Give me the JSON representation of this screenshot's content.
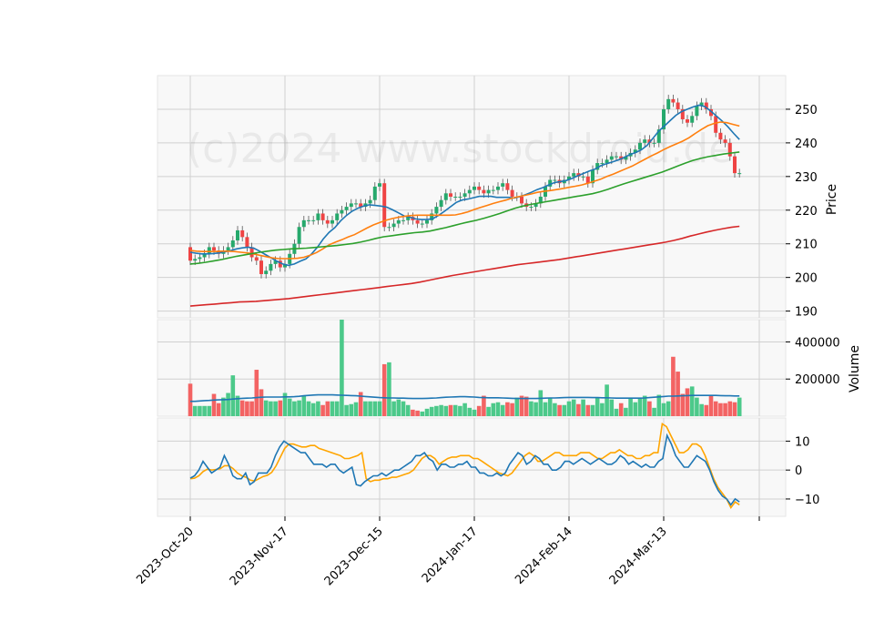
{
  "watermark": "(c)2024 www.stockdroid.de",
  "chart_data": [
    {
      "type": "candlestick",
      "panel": "price",
      "ylabel": "Price",
      "ylim": [
        188,
        260
      ],
      "yticks": [
        190,
        200,
        210,
        220,
        230,
        240,
        250
      ],
      "x_tick_labels": [
        "2023-Oct-20",
        "2023-Nov-17",
        "2023-Dec-15",
        "2024-Jan-17",
        "2024-Feb-14",
        "2024-Mar-13"
      ],
      "x_tick_index": [
        0,
        20,
        40,
        60,
        80,
        100
      ],
      "series": [
        {
          "name": "Close",
          "values": [
            205,
            205.5,
            206,
            207,
            209,
            208,
            207,
            208,
            209,
            211,
            214,
            212,
            209,
            206,
            205,
            201,
            202,
            204,
            205,
            203,
            204,
            207,
            210,
            215,
            217,
            217,
            217,
            219,
            217,
            216,
            217,
            219,
            220,
            221,
            222,
            222,
            221,
            222,
            223,
            227,
            228,
            215,
            215,
            216,
            217,
            217,
            218,
            217,
            216,
            216,
            217,
            219,
            221,
            223,
            225,
            224,
            224,
            224,
            225,
            226,
            227,
            226,
            225,
            226,
            226,
            227,
            228,
            226,
            224,
            224,
            222,
            221,
            221,
            222,
            224,
            227,
            229,
            229,
            228,
            229,
            230,
            231,
            230,
            230,
            228,
            232,
            234,
            234,
            235,
            236,
            236,
            235,
            236,
            237,
            238,
            240,
            241,
            240,
            240,
            244,
            250,
            253,
            252,
            250,
            247,
            246,
            248,
            251,
            252,
            250,
            248,
            243,
            241,
            240,
            236,
            231,
            231
          ]
        },
        {
          "name": "SMA10",
          "color": "#1f77b4",
          "values": [
            207.5,
            207.2,
            207,
            207,
            207.1,
            207.3,
            207.6,
            208,
            208.5,
            208.8,
            209,
            208.7,
            207.8,
            206.8,
            205.8,
            204.8,
            204,
            203.6,
            204,
            204.8,
            205.5,
            207,
            209,
            211.4,
            213.4,
            214.8,
            216.8,
            218.4,
            219.7,
            220.6,
            221.2,
            221.6,
            221.4,
            221.2,
            220.9,
            220.1,
            219.2,
            218.3,
            217.9,
            217.4,
            217.2,
            217.2,
            217.5,
            218.5,
            219.7,
            221,
            222.3,
            223,
            223.3,
            223.7,
            224.1,
            224.1,
            224.1,
            223.8,
            223.8,
            223.8,
            223.6,
            224,
            224.6,
            225.3,
            226.1,
            226.7,
            227.5,
            228.2,
            228.5,
            228.8,
            229.4,
            230.2,
            230.9,
            231.6,
            232.2,
            233.2,
            233.8,
            234.3,
            234.9,
            235.6,
            236.5,
            237.1,
            237.9,
            239.2,
            241.3,
            243.4,
            245,
            246.6,
            248.2,
            249.3,
            250,
            250.7,
            251.2,
            250.8,
            249.5,
            248,
            246.5,
            244.8,
            242.8,
            241
          ]
        },
        {
          "name": "SMA20",
          "color": "#ff7f0e",
          "values": [
            208,
            207.8,
            207.7,
            207.7,
            207.7,
            207.8,
            207.8,
            207.7,
            207.5,
            207.3,
            207,
            206.6,
            206.2,
            205.8,
            205.6,
            205.6,
            205.6,
            205.7,
            206,
            206.6,
            207.4,
            208.5,
            209.7,
            210.5,
            211.2,
            212,
            212.7,
            213.7,
            214.7,
            215.6,
            216.3,
            217,
            217.5,
            217.9,
            218.2,
            218.4,
            218.5,
            218.5,
            218.5,
            218.5,
            218.5,
            218.5,
            218.6,
            219,
            219.5,
            220.2,
            220.8,
            221.4,
            222,
            222.5,
            223,
            223.6,
            224,
            224.4,
            224.8,
            225.3,
            225.6,
            225.8,
            226.1,
            226.4,
            226.8,
            227.1,
            227.5,
            228,
            228.6,
            229.2,
            230,
            230.7,
            231.5,
            232.3,
            233.1,
            234.1,
            235.1,
            236.1,
            237,
            238,
            238.9,
            239.7,
            240.5,
            241.5,
            242.8,
            244,
            245.1,
            245.8,
            246.2,
            246,
            245.5,
            245
          ]
        },
        {
          "name": "SMA50",
          "color": "#2ca02c",
          "values": [
            204,
            204.2,
            204.5,
            204.9,
            205.3,
            205.8,
            206.3,
            206.7,
            207.1,
            207.5,
            207.8,
            208.1,
            208.3,
            208.5,
            208.6,
            208.7,
            208.9,
            209.1,
            209.3,
            209.5,
            209.8,
            210.1,
            210.5,
            211,
            211.6,
            212.1,
            212.4,
            212.7,
            213,
            213.3,
            213.5,
            213.8,
            214.3,
            214.8,
            215.4,
            216,
            216.5,
            217,
            217.6,
            218.3,
            219,
            219.8,
            220.6,
            221.2,
            221.7,
            222.1,
            222.5,
            222.9,
            223.3,
            223.7,
            224.1,
            224.5,
            224.9,
            225.5,
            226.2,
            227,
            227.8,
            228.5,
            229.2,
            229.9,
            230.6,
            231.3,
            232.2,
            233.1,
            234,
            234.8,
            235.4,
            235.9,
            236.3,
            236.7,
            237,
            237.3
          ]
        },
        {
          "name": "SMA200",
          "color": "#d62728",
          "values": [
            191.5,
            191.7,
            191.9,
            192.1,
            192.3,
            192.5,
            192.7,
            192.8,
            192.9,
            193.1,
            193.3,
            193.5,
            193.7,
            194,
            194.3,
            194.6,
            194.9,
            195.2,
            195.5,
            195.8,
            196.1,
            196.4,
            196.7,
            197,
            197.3,
            197.6,
            197.9,
            198.2,
            198.6,
            199.1,
            199.6,
            200.1,
            200.6,
            201,
            201.4,
            201.8,
            202.2,
            202.6,
            203,
            203.4,
            203.8,
            204.1,
            204.4,
            204.7,
            205,
            205.3,
            205.7,
            206.1,
            206.5,
            206.9,
            207.3,
            207.7,
            208.1,
            208.5,
            208.9,
            209.3,
            209.7,
            210.1,
            210.5,
            211,
            211.6,
            212.3,
            212.9,
            213.5,
            214,
            214.5,
            214.9,
            215.2
          ]
        }
      ]
    },
    {
      "type": "bar",
      "panel": "volume",
      "ylabel": "Volume",
      "ylim": [
        0,
        520000
      ],
      "yticks": [
        200000,
        400000
      ],
      "ytick_labels": [
        "200000",
        "400000"
      ],
      "series": [
        {
          "name": "Volume",
          "values": [
            175000,
            55000,
            55000,
            55000,
            55000,
            120000,
            70000,
            100000,
            125000,
            220000,
            110000,
            85000,
            80000,
            80000,
            250000,
            145000,
            85000,
            80000,
            80000,
            85000,
            125000,
            95000,
            80000,
            85000,
            110000,
            80000,
            70000,
            80000,
            60000,
            80000,
            80000,
            80000,
            520000,
            60000,
            65000,
            75000,
            130000,
            80000,
            80000,
            80000,
            80000,
            280000,
            290000,
            80000,
            90000,
            80000,
            60000,
            35000,
            30000,
            25000,
            40000,
            50000,
            55000,
            60000,
            55000,
            60000,
            60000,
            55000,
            70000,
            45000,
            35000,
            55000,
            110000,
            50000,
            70000,
            75000,
            60000,
            75000,
            70000,
            100000,
            110000,
            105000,
            80000,
            75000,
            140000,
            75000,
            100000,
            70000,
            60000,
            60000,
            80000,
            90000,
            65000,
            90000,
            60000,
            60000,
            100000,
            70000,
            170000,
            90000,
            40000,
            70000,
            45000,
            100000,
            75000,
            95000,
            110000,
            80000,
            45000,
            115000,
            70000,
            80000,
            320000,
            240000,
            120000,
            150000,
            160000,
            100000,
            65000,
            60000,
            115000,
            80000,
            70000,
            70000,
            80000,
            75000,
            100000
          ]
        },
        {
          "name": "Volume MA",
          "color": "#1f77b4",
          "values": [
            80000,
            80000,
            82000,
            84000,
            85000,
            87000,
            88000,
            89000,
            90000,
            92000,
            94000,
            96000,
            97000,
            98000,
            100000,
            102000,
            103000,
            103000,
            103000,
            103000,
            104000,
            104000,
            105000,
            107000,
            110000,
            112000,
            114000,
            115000,
            115000,
            115000,
            115000,
            114000,
            113000,
            112000,
            111000,
            110000,
            108000,
            106000,
            104000,
            102000,
            100000,
            99000,
            98000,
            98000,
            97000,
            97000,
            96000,
            95000,
            95000,
            95000,
            96000,
            97000,
            98000,
            100000,
            102000,
            103000,
            104000,
            105000,
            105000,
            104000,
            103000,
            101000,
            100000,
            99000,
            99000,
            99000,
            98000,
            97000,
            96000,
            95000,
            95000,
            95000,
            95000,
            95000,
            96000,
            97000,
            98000,
            98000,
            99000,
            100000,
            101000,
            101000,
            101000,
            101000,
            101000,
            100000,
            100000,
            99000,
            99000,
            98000,
            97000,
            97000,
            97000,
            97000,
            97000,
            97000,
            98000,
            100000,
            102000,
            104000,
            106000,
            108000,
            108000,
            109000,
            110000,
            111000,
            112000,
            112000,
            112000,
            112000,
            112000,
            112000,
            111000,
            110000,
            110000,
            109000,
            109000
          ]
        }
      ]
    },
    {
      "type": "line",
      "panel": "oscillator",
      "ylim": [
        -16,
        18
      ],
      "yticks": [
        -10,
        0,
        10
      ],
      "series": [
        {
          "name": "Oscillator",
          "color": "#1f77b4",
          "values": [
            -2.8,
            -2,
            0,
            3,
            1,
            -1,
            0,
            1,
            5,
            2,
            -2,
            -3,
            -3,
            -1,
            -5,
            -4,
            -1,
            -1,
            -1,
            1,
            5,
            8,
            10,
            9,
            8,
            7,
            6,
            6,
            4,
            2,
            2,
            2,
            1,
            2,
            2,
            0,
            -1,
            0,
            1,
            -5,
            -5.5,
            -4,
            -3,
            -2,
            -2,
            -1,
            -2,
            -1,
            0,
            0,
            1,
            2,
            3,
            5,
            5,
            6,
            4,
            3,
            0,
            2,
            2,
            1,
            1,
            2,
            2,
            3,
            1,
            1,
            -1,
            -1,
            -2,
            -2,
            -1,
            -2,
            -1,
            2,
            4,
            6,
            5,
            2,
            3,
            5,
            4,
            2,
            2,
            0,
            0,
            1,
            3,
            3,
            2,
            3,
            4,
            3,
            2,
            3,
            4,
            3,
            2,
            2,
            3,
            5,
            4,
            2,
            3,
            2,
            1,
            2,
            1,
            1,
            3,
            4,
            12,
            9,
            5,
            3,
            1,
            1,
            3,
            5,
            4,
            3,
            0,
            -4,
            -7,
            -9,
            -10,
            -12,
            -10,
            -11
          ]
        },
        {
          "name": "Signal",
          "color": "#ffa500",
          "values": [
            -3,
            -2.8,
            -2,
            -0.5,
            0.3,
            0,
            0.2,
            0.5,
            1.5,
            1.5,
            0.5,
            -1,
            -2,
            -2.5,
            -3.5,
            -3.8,
            -3,
            -2.2,
            -1.8,
            -0.8,
            1.5,
            4.5,
            7.5,
            9,
            9,
            8.5,
            8,
            8,
            8.5,
            8.5,
            7.5,
            7,
            6.5,
            6,
            5.5,
            5,
            4,
            4,
            4.5,
            5,
            6,
            -3,
            -4,
            -3.5,
            -3.5,
            -3,
            -3,
            -2.5,
            -2.5,
            -2,
            -1.5,
            -1,
            0,
            2,
            4,
            5,
            5,
            4,
            2,
            3,
            4,
            4.5,
            4.5,
            5,
            5,
            5,
            4,
            4,
            3,
            2,
            1,
            0,
            -1,
            -1.5,
            -2,
            -1,
            1,
            3,
            5,
            6,
            5,
            3,
            3,
            4,
            5,
            6,
            6,
            5,
            5,
            5,
            5,
            6,
            6,
            6,
            5,
            4,
            4,
            5,
            6,
            6,
            7,
            6,
            5,
            5,
            4,
            4,
            5,
            5,
            6,
            6,
            16,
            15,
            12,
            9,
            6,
            6,
            7,
            9,
            9,
            8,
            5,
            1,
            -3,
            -6,
            -8,
            -10,
            -13,
            -11,
            -12
          ]
        }
      ]
    }
  ]
}
